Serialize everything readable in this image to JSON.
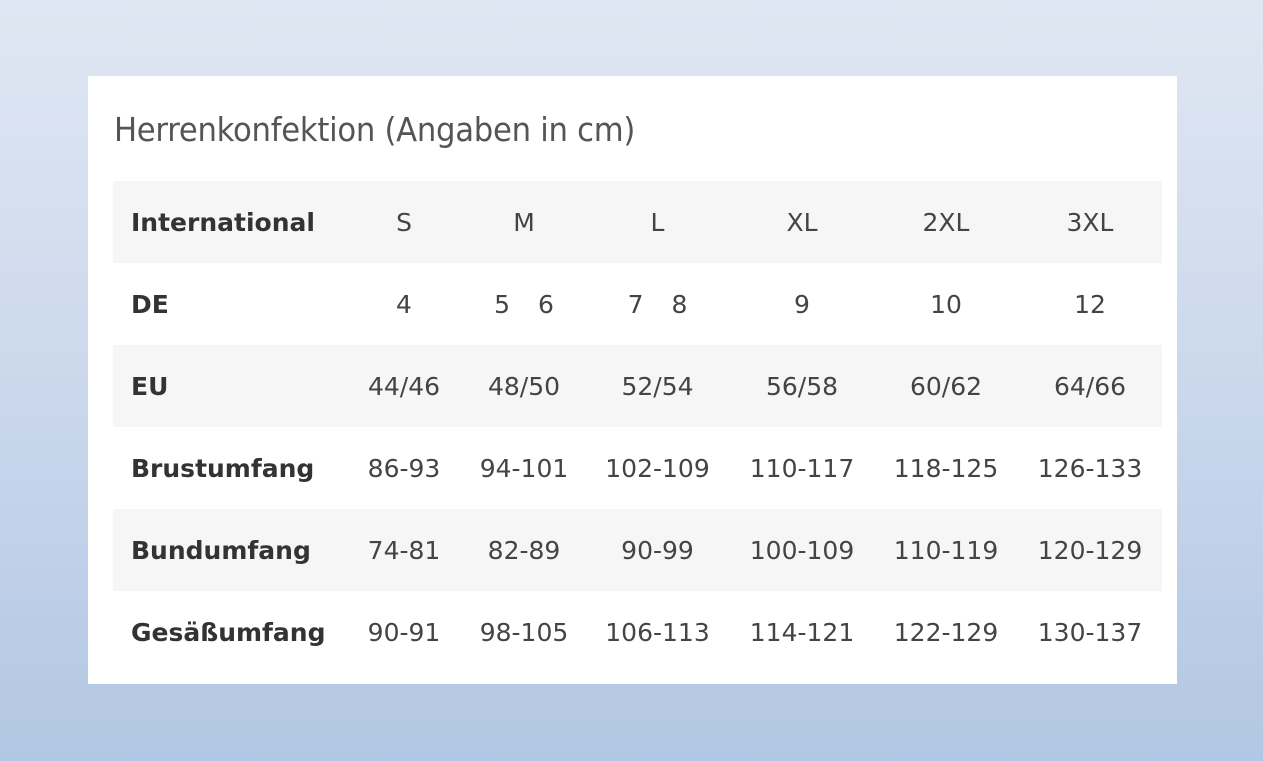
{
  "title": "Herrenkonfektion (Angaben in cm)",
  "table": {
    "rows": [
      {
        "label": "International",
        "cells": [
          [
            "S"
          ],
          [
            "M"
          ],
          [
            "L"
          ],
          [
            "XL"
          ],
          [
            "2XL"
          ],
          [
            "3XL"
          ]
        ]
      },
      {
        "label": "DE",
        "cells": [
          [
            "4"
          ],
          [
            "5",
            "6"
          ],
          [
            "7",
            "8"
          ],
          [
            "9"
          ],
          [
            "10"
          ],
          [
            "12"
          ]
        ]
      },
      {
        "label": "EU",
        "cells": [
          [
            "44/46"
          ],
          [
            "48/50"
          ],
          [
            "52/54"
          ],
          [
            "56/58"
          ],
          [
            "60/62"
          ],
          [
            "64/66"
          ]
        ]
      },
      {
        "label": "Brustumfang",
        "cells": [
          [
            "86-93"
          ],
          [
            "94-101"
          ],
          [
            "102-109"
          ],
          [
            "110-117"
          ],
          [
            "118-125"
          ],
          [
            "126-133"
          ]
        ]
      },
      {
        "label": "Bundumfang",
        "cells": [
          [
            "74-81"
          ],
          [
            "82-89"
          ],
          [
            "90-99"
          ],
          [
            "100-109"
          ],
          [
            "110-119"
          ],
          [
            "120-129"
          ]
        ]
      },
      {
        "label": "Gesäßumfang",
        "cells": [
          [
            "90-91"
          ],
          [
            "98-105"
          ],
          [
            "106-113"
          ],
          [
            "114-121"
          ],
          [
            "122-129"
          ],
          [
            "130-137"
          ]
        ]
      }
    ]
  }
}
